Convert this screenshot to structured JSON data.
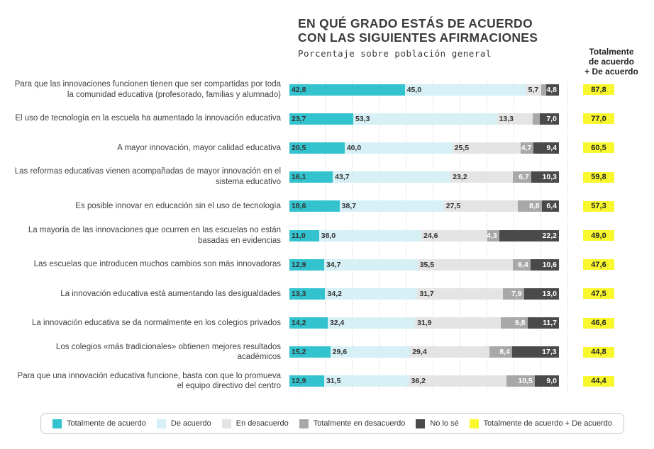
{
  "title": {
    "line1": "EN QUÉ GRADO ESTÁS DE ACUERDO",
    "line2": "CON LAS SIGUIENTES AFIRMACIONES"
  },
  "subtitle": "Porcentaje sobre población general",
  "totals_header": "Totalmente\nde acuerdo\n+ De acuerdo",
  "colors": {
    "strongly_agree": "#33C3CF",
    "agree": "#D6F0F6",
    "disagree": "#E4E4E4",
    "strongly_disagree": "#A8A8A8",
    "dont_know": "#4A4A4A",
    "total_badge": "#F9F72E",
    "grid_line": "#d7d7d7"
  },
  "legend": [
    {
      "label": "Totalmente de acuerdo",
      "color": "strongly_agree"
    },
    {
      "label": "De acuerdo",
      "color": "agree"
    },
    {
      "label": "En desacuerdo",
      "color": "disagree"
    },
    {
      "label": "Totalmente en desacuerdo",
      "color": "strongly_disagree"
    },
    {
      "label": "No lo sé",
      "color": "dont_know"
    },
    {
      "label": "Totalmente de acuerdo + De acuerdo",
      "color": "total_badge"
    }
  ],
  "chart_data": {
    "type": "bar",
    "stacked": true,
    "orientation": "horizontal",
    "xlim": [
      0,
      100
    ],
    "grid": "vertical dotted lines every 10%",
    "legend_position": "bottom",
    "series_names": [
      "Totalmente de acuerdo",
      "De acuerdo",
      "En desacuerdo",
      "Totalmente en desacuerdo",
      "No lo sé"
    ],
    "rows": [
      {
        "label": "Para que las innovaciones funcionen tienen que ser compartidas por toda la comunidad educativa (profesorado, familias y alumnado)",
        "values": [
          42.8,
          45.0,
          5.7,
          1.7,
          4.8
        ],
        "value_labels": [
          "42,8",
          "45,0",
          "5,7",
          "",
          "4,8"
        ],
        "total": "87,8"
      },
      {
        "label": "El uso de tecnología en la escuela ha aumentado la innovación educativa",
        "values": [
          23.7,
          53.3,
          13.3,
          2.7,
          7.0
        ],
        "value_labels": [
          "23,7",
          "53,3",
          "13,3",
          "",
          "7,0"
        ],
        "total": "77,0"
      },
      {
        "label": "A mayor innovación, mayor calidad educativa",
        "values": [
          20.5,
          40.0,
          25.5,
          4.7,
          9.4
        ],
        "value_labels": [
          "20,5",
          "40,0",
          "25,5",
          "4,7",
          "9,4"
        ],
        "total": "60,5"
      },
      {
        "label": "Las reformas educativas vienen acompañadas de mayor innovación en el sistema educativo",
        "values": [
          16.1,
          43.7,
          23.2,
          6.7,
          10.3
        ],
        "value_labels": [
          "16,1",
          "43,7",
          "23,2",
          "6,7",
          "10,3"
        ],
        "total": "59,8"
      },
      {
        "label": "Es posible innovar en educación sin el uso de tecnología",
        "values": [
          18.6,
          38.7,
          27.5,
          8.8,
          6.4
        ],
        "value_labels": [
          "18,6",
          "38,7",
          "27,5",
          "8,8",
          "6,4"
        ],
        "total": "57,3"
      },
      {
        "label": "La mayoría de las innovaciones que ocurren en las escuelas no están basadas en evidencias",
        "values": [
          11.0,
          38.0,
          24.6,
          4.3,
          22.2
        ],
        "value_labels": [
          "11,0",
          "38,0",
          "24,6",
          "4,3",
          "22,2"
        ],
        "total": "49,0"
      },
      {
        "label": "Las escuelas que introducen muchos cambios son más innovadoras",
        "values": [
          12.9,
          34.7,
          35.5,
          6.4,
          10.6
        ],
        "value_labels": [
          "12,9",
          "34,7",
          "35,5",
          "6,4",
          "10,6"
        ],
        "total": "47,6"
      },
      {
        "label": "La innovación educativa está aumentando las desigualdades",
        "values": [
          13.3,
          34.2,
          31.7,
          7.9,
          13.0
        ],
        "value_labels": [
          "13,3",
          "34,2",
          "31,7",
          "7,9",
          "13,0"
        ],
        "total": "47,5"
      },
      {
        "label": "La innovación educativa se da normalmente en los colegios privados",
        "values": [
          14.2,
          32.4,
          31.9,
          9.8,
          11.7
        ],
        "value_labels": [
          "14,2",
          "32,4",
          "31,9",
          "9,8",
          "11,7"
        ],
        "total": "46,6"
      },
      {
        "label": "Los colegios «más tradicionales» obtienen mejores resultados académicos",
        "values": [
          15.2,
          29.6,
          29.4,
          8.4,
          17.3
        ],
        "value_labels": [
          "15,2",
          "29,6",
          "29,4",
          "8,4",
          "17,3"
        ],
        "total": "44,8"
      },
      {
        "label": "Para que una innovación educativa funcione, basta con que lo promueva el equipo directivo del centro",
        "values": [
          12.9,
          31.5,
          36.2,
          10.5,
          9.0
        ],
        "value_labels": [
          "12,9",
          "31,5",
          "36,2",
          "10,5",
          "9,0"
        ],
        "total": "44,4"
      }
    ]
  }
}
